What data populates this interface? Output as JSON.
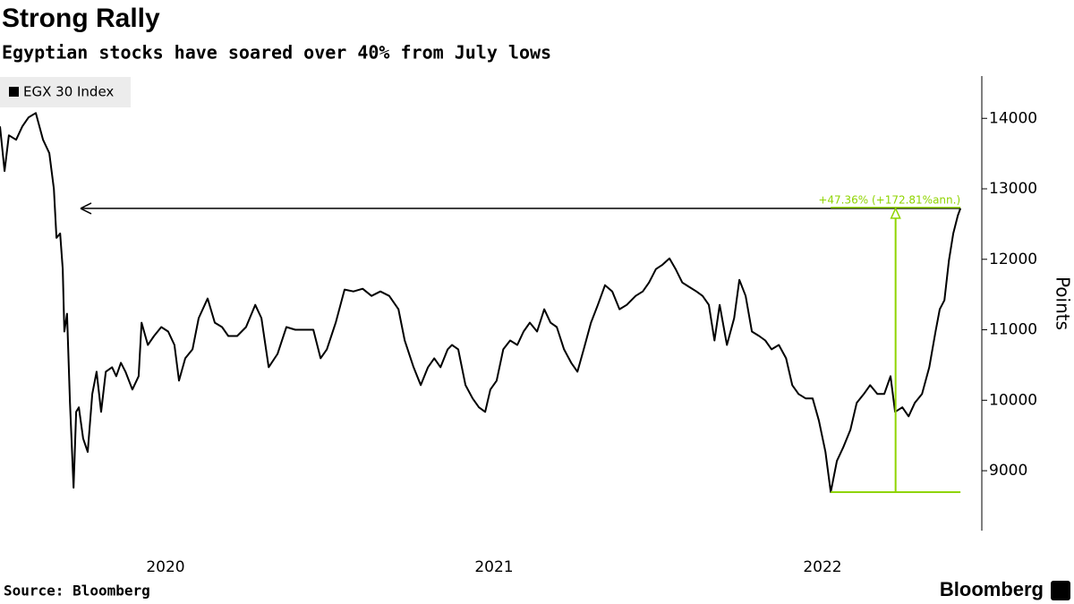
{
  "chart_data": {
    "type": "line",
    "title": "Strong Rally",
    "subtitle": "Egyptian stocks have soared over 40% from July lows",
    "y_label": "Points",
    "source": "Source: Bloomberg",
    "brand": "Bloomberg",
    "annotation": "+47.36% (+172.81%ann.)",
    "annotation_color": "#8fd400",
    "xlim": [
      2019.496,
      2022.485
    ],
    "xticks": [
      2020,
      2021,
      2022
    ],
    "ylim": [
      8150,
      14600
    ],
    "yticks": [
      9000,
      10000,
      11000,
      12000,
      13000,
      14000
    ],
    "x": [
      2019.496,
      2019.51,
      2019.523,
      2019.545,
      2019.564,
      2019.583,
      2019.605,
      2019.627,
      2019.646,
      2019.66,
      2019.668,
      2019.679,
      2019.687,
      2019.692,
      2019.7,
      2019.709,
      2019.72,
      2019.728,
      2019.736,
      2019.749,
      2019.763,
      2019.777,
      2019.79,
      2019.804,
      2019.818,
      2019.837,
      2019.85,
      2019.864,
      2019.878,
      2019.899,
      2019.918,
      2019.927,
      2019.946,
      2019.965,
      2019.987,
      2020.008,
      2020.027,
      2020.041,
      2020.06,
      2020.082,
      2020.101,
      2020.128,
      2020.15,
      2020.172,
      2020.191,
      2020.218,
      2020.245,
      2020.273,
      2020.292,
      2020.314,
      2020.341,
      2020.368,
      2020.395,
      2020.423,
      2020.45,
      2020.472,
      2020.491,
      2020.518,
      2020.545,
      2020.572,
      2020.6,
      2020.627,
      2020.654,
      2020.681,
      2020.709,
      2020.728,
      2020.755,
      2020.777,
      2020.799,
      2020.818,
      2020.837,
      2020.859,
      2020.872,
      2020.891,
      2020.913,
      2020.935,
      2020.954,
      2020.973,
      2020.989,
      2021.008,
      2021.028,
      2021.049,
      2021.071,
      2021.09,
      2021.109,
      2021.131,
      2021.153,
      2021.172,
      2021.191,
      2021.213,
      2021.235,
      2021.254,
      2021.273,
      2021.295,
      2021.316,
      2021.338,
      2021.36,
      2021.382,
      2021.404,
      2021.431,
      2021.453,
      2021.472,
      2021.493,
      2021.513,
      2021.534,
      2021.553,
      2021.573,
      2021.594,
      2021.616,
      2021.635,
      2021.654,
      2021.671,
      2021.687,
      2021.709,
      2021.731,
      2021.747,
      2021.766,
      2021.785,
      2021.807,
      2021.826,
      2021.845,
      2021.867,
      2021.889,
      2021.908,
      2021.927,
      2021.949,
      2021.97,
      2021.989,
      2022.009,
      2022.025,
      2022.044,
      2022.063,
      2022.085,
      2022.104,
      2022.126,
      2022.145,
      2022.167,
      2022.188,
      2022.207,
      2022.221,
      2022.243,
      2022.262,
      2022.281,
      2022.303,
      2022.325,
      2022.344,
      2022.357,
      2022.371,
      2022.385,
      2022.398,
      2022.412,
      2022.42
    ],
    "series": [
      {
        "name": "EGX 30 Index",
        "color": "#000000",
        "values": [
          13886,
          13253,
          13759,
          13696,
          13886,
          14013,
          14076,
          13696,
          13506,
          13000,
          12304,
          12367,
          11861,
          10975,
          11228,
          9962,
          8760,
          9835,
          9899,
          9456,
          9266,
          10089,
          10405,
          9835,
          10405,
          10468,
          10342,
          10532,
          10405,
          10152,
          10342,
          11101,
          10785,
          10911,
          11038,
          10975,
          10785,
          10278,
          10595,
          10722,
          11165,
          11443,
          11101,
          11038,
          10911,
          10911,
          11038,
          11354,
          11165,
          10468,
          10658,
          11038,
          11000,
          11000,
          11000,
          10595,
          10722,
          11101,
          11570,
          11544,
          11582,
          11481,
          11544,
          11481,
          11291,
          10848,
          10468,
          10215,
          10468,
          10595,
          10468,
          10722,
          10785,
          10722,
          10215,
          10025,
          9899,
          9835,
          10152,
          10278,
          10722,
          10848,
          10785,
          10975,
          11101,
          10975,
          11291,
          11101,
          11038,
          10722,
          10532,
          10405,
          10722,
          11101,
          11354,
          11633,
          11544,
          11291,
          11354,
          11481,
          11544,
          11671,
          11861,
          11924,
          12013,
          11861,
          11671,
          11608,
          11544,
          11481,
          11354,
          10848,
          11354,
          10785,
          11165,
          11709,
          11481,
          10975,
          10911,
          10848,
          10722,
          10785,
          10595,
          10215,
          10089,
          10025,
          10025,
          9709,
          9266,
          8696,
          9139,
          9329,
          9582,
          9962,
          10089,
          10215,
          10089,
          10089,
          10342,
          9835,
          9899,
          9772,
          9962,
          10089,
          10468,
          10975,
          11291,
          11418,
          11987,
          12367,
          12620,
          12722
        ]
      }
    ]
  }
}
